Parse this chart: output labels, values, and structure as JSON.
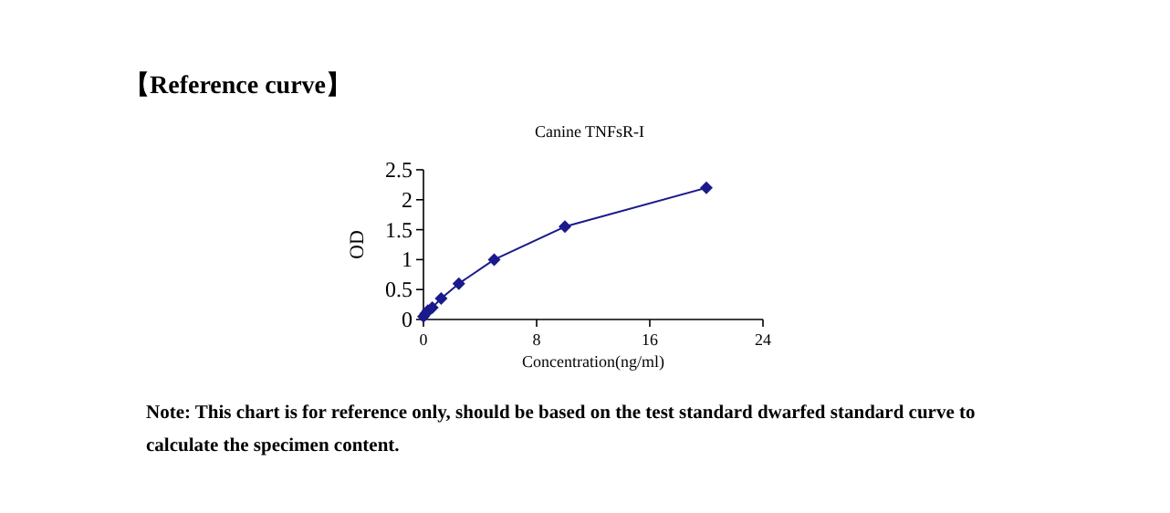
{
  "chart_data": {
    "type": "line",
    "title": "Canine TNFsR-I",
    "xlabel": "Concentration(ng/ml)",
    "ylabel": "OD",
    "x": [
      0,
      0.156,
      0.3125,
      0.625,
      1.25,
      2.5,
      5,
      10,
      20
    ],
    "series": [
      {
        "color": "#1a1a8c",
        "values": [
          0.05,
          0.1,
          0.15,
          0.2,
          0.35,
          0.6,
          1.0,
          1.55,
          2.2
        ]
      }
    ],
    "xlim": [
      0,
      24
    ],
    "xticks": [
      0,
      8,
      16,
      24
    ],
    "ylim": [
      0,
      2.5
    ],
    "yticks": [
      {
        "value": 0,
        "label": "0"
      },
      {
        "value": 0.5,
        "label": "0.5"
      },
      {
        "value": 1,
        "label": "1"
      },
      {
        "value": 1.5,
        "label": "1.5"
      },
      {
        "value": 2,
        "label": "2"
      },
      {
        "value": 2.5,
        "label": "2.5"
      }
    ],
    "marker": "diamond",
    "line_style": "solid",
    "grid": false,
    "annotations": [
      "【Reference curve】",
      "Note: This chart is for reference only, should be based on the test standard dwarfed standard curve to calculate the specimen content."
    ]
  }
}
